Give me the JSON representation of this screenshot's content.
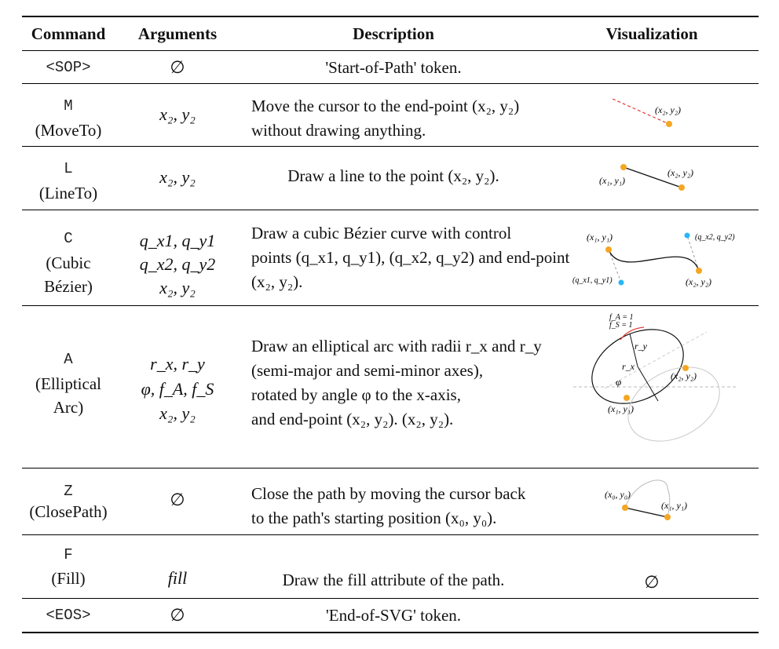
{
  "headers": {
    "command": "Command",
    "arguments": "Arguments",
    "description": "Description",
    "visualization": "Visualization"
  },
  "rows": [
    {
      "cmd": "<SOP>",
      "name": "",
      "args": [
        "∅"
      ],
      "desc": [
        "'Start-of-Path' token."
      ]
    },
    {
      "cmd": "M",
      "name": "(MoveTo)",
      "args": [
        "x₂, y₂"
      ],
      "desc": [
        "Move the cursor to the end-point (x₂, y₂)",
        "without drawing anything."
      ]
    },
    {
      "cmd": "L",
      "name": "(LineTo)",
      "args": [
        "x₂, y₂"
      ],
      "desc": [
        "Draw a line to the point (x₂, y₂)."
      ]
    },
    {
      "cmd": "C",
      "name": "(Cubic",
      "name2": "Bézier)",
      "args": [
        "q_x1, q_y1",
        "q_x2, q_y2",
        "x₂, y₂"
      ],
      "desc": [
        "Draw a cubic Bézier curve with control",
        "points (q_x1, q_y1), (q_x2, q_y2) and end-point",
        "(x₂, y₂)."
      ]
    },
    {
      "cmd": "A",
      "name": "(Elliptical",
      "name2": "Arc)",
      "args": [
        "r_x, r_y",
        "φ, f_A, f_S",
        "x₂, y₂"
      ],
      "desc": [
        "Draw an elliptical arc with radii r_x and r_y",
        "(semi-major and semi-minor axes),",
        "rotated by angle φ to the x-axis,",
        "and end-point (x₂, y₂). (x₂, y₂)."
      ]
    },
    {
      "cmd": "Z",
      "name": "(ClosePath)",
      "args": [
        "∅"
      ],
      "desc": [
        "Close the path by moving the cursor back",
        "to the path's starting position (x₀, y₀)."
      ]
    },
    {
      "cmd": "F",
      "name": "(Fill)",
      "args": [
        "fill"
      ],
      "desc": [
        "Draw the fill attribute of the path."
      ],
      "vis": "∅"
    },
    {
      "cmd": "<EOS>",
      "name": "",
      "args": [
        "∅"
      ],
      "desc": [
        "'End-of-SVG' token."
      ]
    }
  ],
  "vis_labels": {
    "m_end": "(x₂, y₂)",
    "l_start": "(x₁, y₁)",
    "l_end": "(x₂, y₂)",
    "c_start": "(x₁, y₁)",
    "c_q1": "(q_x1, q_y1)",
    "c_q2": "(q_x2, q_y2)",
    "c_end": "(x₂, y₂)",
    "a_fa": "f_A = 1",
    "a_fs": "f_S = 1",
    "a_ry": "r_y",
    "a_rx": "r_x",
    "a_phi": "φ",
    "a_end": "(x₂, y₂)",
    "a_start": "(x₁, y₁)",
    "z_start": "(x₀, y₀)",
    "z_end": "(x₁, y₁)"
  },
  "colors": {
    "point": "#f5a623",
    "control": "#29b6f6",
    "move": "#e53935"
  }
}
